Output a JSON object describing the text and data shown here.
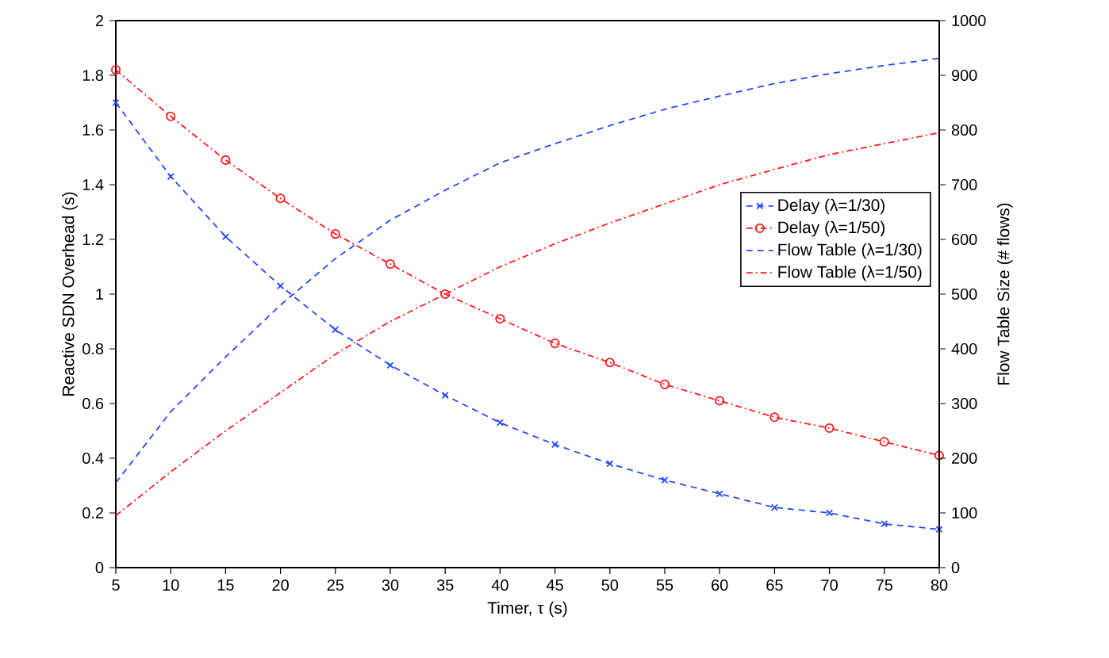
{
  "chart_data": {
    "type": "line",
    "xlabel": "Timer, τ (s)",
    "ylabel": "Reactive SDN Overhead (s)",
    "y2label": "Flow Table Size (# flows)",
    "x": [
      5,
      10,
      15,
      20,
      25,
      30,
      35,
      40,
      45,
      50,
      55,
      60,
      65,
      70,
      75,
      80
    ],
    "series": [
      {
        "name": "Delay (λ=1/30)",
        "color": "#2448ff",
        "marker": "cross",
        "line_style": "dashed",
        "values": [
          1.7,
          1.43,
          1.21,
          1.03,
          0.87,
          0.74,
          0.63,
          0.53,
          0.45,
          0.38,
          0.32,
          0.27,
          0.22,
          0.2,
          0.16,
          0.14
        ]
      },
      {
        "name": "Delay (λ=1/50)",
        "color": "#ff1a1a",
        "marker": "circle",
        "line_style": "dashdot",
        "values": [
          1.82,
          1.65,
          1.49,
          1.35,
          1.22,
          1.11,
          1.0,
          0.91,
          0.82,
          0.75,
          0.67,
          0.61,
          0.55,
          0.51,
          0.46,
          0.41
        ]
      },
      {
        "name": "Flow Table (λ=1/30)",
        "color": "#2448ff",
        "marker": "none",
        "line_style": "dashed",
        "axis": "y2",
        "values": [
          155,
          285,
          385,
          480,
          565,
          635,
          690,
          740,
          775,
          808,
          838,
          862,
          885,
          903,
          918,
          931
        ]
      },
      {
        "name": "Flow Table (λ=1/50)",
        "color": "#ff1a1a",
        "marker": "none",
        "line_style": "dashdot",
        "axis": "y2",
        "values": [
          95,
          175,
          250,
          320,
          390,
          450,
          500,
          550,
          592,
          630,
          665,
          700,
          728,
          755,
          775,
          795
        ]
      }
    ],
    "xlim": [
      5,
      80
    ],
    "xticks": [
      5,
      10,
      15,
      20,
      25,
      30,
      35,
      40,
      45,
      50,
      55,
      60,
      65,
      70,
      75,
      80
    ],
    "ylim": [
      0,
      2
    ],
    "yticks": [
      0,
      0.2,
      0.4,
      0.6,
      0.8,
      1,
      1.2,
      1.4,
      1.6,
      1.8,
      2
    ],
    "y2lim": [
      0,
      1000
    ],
    "y2ticks": [
      0,
      100,
      200,
      300,
      400,
      500,
      600,
      700,
      800,
      900,
      1000
    ],
    "grid": false,
    "legend": "right"
  }
}
